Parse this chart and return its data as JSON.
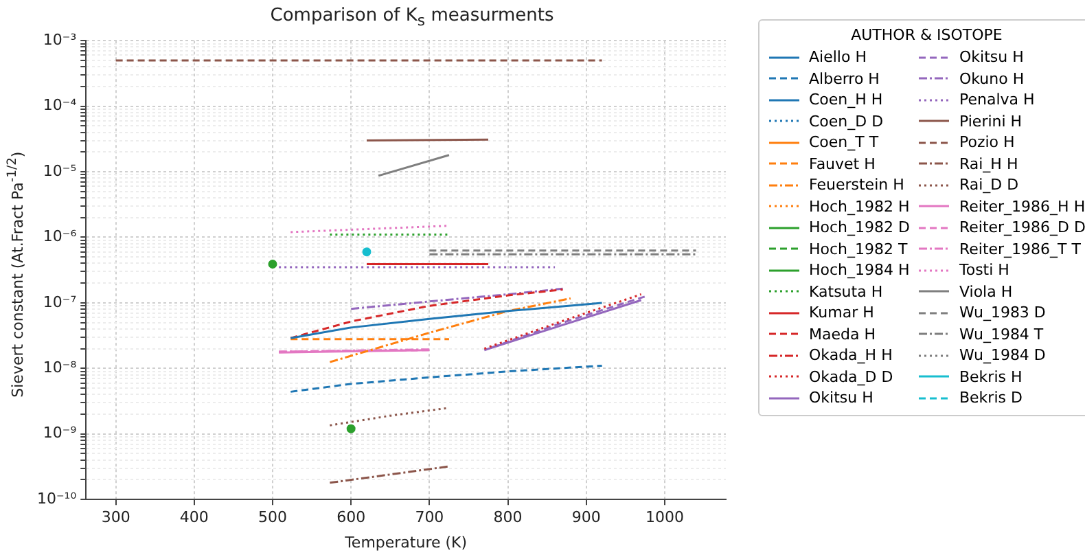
{
  "chart_data": {
    "type": "line",
    "title": "Comparison of K$_{s}$ measurments",
    "xlabel": "Temperature (K)",
    "ylabel": "Sievert constant (At.Fract Pa$^{-1/2}$)",
    "legend_title": "AUTHOR & ISOTOPE",
    "legend": "right",
    "grid": true,
    "log": "y",
    "xlim": [
      262,
      1078
    ],
    "xticks": [
      300,
      400,
      500,
      600,
      700,
      800,
      900,
      1000
    ],
    "ylim": [
      1e-10,
      0.001
    ],
    "yticks": [
      {
        "value": 1e-10,
        "label": "10⁻¹⁰"
      },
      {
        "value": 1e-09,
        "label": "10⁻⁹"
      },
      {
        "value": 1e-08,
        "label": "10⁻⁸"
      },
      {
        "value": 1e-07,
        "label": "10⁻⁷"
      },
      {
        "value": 1e-06,
        "label": "10⁻⁶"
      },
      {
        "value": 1e-05,
        "label": "10⁻⁵"
      },
      {
        "value": 0.0001,
        "label": "10⁻⁴"
      },
      {
        "value": 0.001,
        "label": "10⁻³"
      }
    ],
    "series": [
      {
        "name": "Aiello H",
        "color": "#1f77b4",
        "line_style": "solid",
        "x": [
          523,
          600,
          700,
          800,
          920
        ],
        "values": [
          2.9e-08,
          4.2e-08,
          5.7e-08,
          7.5e-08,
          1e-07
        ]
      },
      {
        "name": "Alberro H",
        "color": "#1f77b4",
        "line_style": "dashed",
        "x": [
          523,
          600,
          700,
          800,
          920
        ],
        "values": [
          4.4e-09,
          5.8e-09,
          7.3e-09,
          9e-09,
          1.1e-08
        ]
      },
      {
        "name": "Coen_H H",
        "color": "#1f77b4",
        "line_style": "solid"
      },
      {
        "name": "Coen_D D",
        "color": "#1f77b4",
        "line_style": "dotted"
      },
      {
        "name": "Coen_T T",
        "color": "#ff7f0e",
        "line_style": "solid"
      },
      {
        "name": "Fauvet H",
        "color": "#ff7f0e",
        "line_style": "dashed",
        "x": [
          523,
          725
        ],
        "values": [
          2.8e-08,
          2.8e-08
        ]
      },
      {
        "name": "Feuerstein H",
        "color": "#ff7f0e",
        "line_style": "dashdot",
        "x": [
          573,
          700,
          800,
          880
        ],
        "values": [
          1.25e-08,
          3.5e-08,
          7.5e-08,
          1.17e-07
        ]
      },
      {
        "name": "Hoch_1982 H",
        "color": "#ff7f0e",
        "line_style": "dotted"
      },
      {
        "name": "Hoch_1982 D",
        "color": "#2ca02c",
        "line_style": "solid",
        "marker": "circle",
        "x": [
          600
        ],
        "values": [
          1.2e-09
        ]
      },
      {
        "name": "Hoch_1982 T",
        "color": "#2ca02c",
        "line_style": "dashed"
      },
      {
        "name": "Hoch_1984 H",
        "color": "#2ca02c",
        "line_style": "solid",
        "marker": "circle",
        "x": [
          500
        ],
        "values": [
          3.9e-07
        ]
      },
      {
        "name": "Katsuta H",
        "color": "#2ca02c",
        "line_style": "dotted",
        "x": [
          573,
          725
        ],
        "values": [
          1.1e-06,
          1.1e-06
        ]
      },
      {
        "name": "Kumar H",
        "color": "#d62728",
        "line_style": "solid",
        "x": [
          620,
          775
        ],
        "values": [
          3.9e-07,
          3.9e-07
        ]
      },
      {
        "name": "Maeda H",
        "color": "#d62728",
        "line_style": "dashed",
        "x": [
          523,
          600,
          700,
          800,
          870
        ],
        "values": [
          2.9e-08,
          5.2e-08,
          9e-08,
          1.3e-07,
          1.6e-07
        ]
      },
      {
        "name": "Okada_H H",
        "color": "#d62728",
        "line_style": "dashdot"
      },
      {
        "name": "Okada_D D",
        "color": "#d62728",
        "line_style": "dotted",
        "x": [
          770,
          870,
          970
        ],
        "values": [
          2e-08,
          5.3e-08,
          1.35e-07
        ]
      },
      {
        "name": "Okitsu H",
        "color": "#9467bd",
        "line_style": "solid",
        "x": [
          770,
          870,
          970
        ],
        "values": [
          1.9e-08,
          4.6e-08,
          1.1e-07
        ]
      },
      {
        "name": "Okitsu H",
        "color": "#9467bd",
        "line_style": "dashed",
        "x": [
          780,
          870,
          975
        ],
        "values": [
          2.1e-08,
          5e-08,
          1.25e-07
        ]
      },
      {
        "name": "Okuno H",
        "color": "#9467bd",
        "line_style": "dashdot",
        "x": [
          600,
          700,
          800,
          870
        ],
        "values": [
          8.1e-08,
          1.05e-07,
          1.35e-07,
          1.65e-07
        ]
      },
      {
        "name": "Penalva H",
        "color": "#9467bd",
        "line_style": "dotted",
        "x": [
          508,
          860
        ],
        "values": [
          3.5e-07,
          3.5e-07
        ]
      },
      {
        "name": "Pierini H",
        "color": "#8c564b",
        "line_style": "solid",
        "x": [
          620,
          775
        ],
        "values": [
          3e-05,
          3.1e-05
        ]
      },
      {
        "name": "Pozio H",
        "color": "#8c564b",
        "line_style": "dashed",
        "x": [
          300,
          920
        ],
        "values": [
          0.0005,
          0.0005
        ]
      },
      {
        "name": "Rai_H H",
        "color": "#8c564b",
        "line_style": "dashdot",
        "x": [
          573,
          725
        ],
        "values": [
          1.8e-10,
          3.2e-10
        ]
      },
      {
        "name": "Rai_D D",
        "color": "#8c564b",
        "line_style": "dotted",
        "x": [
          573,
          650,
          725
        ],
        "values": [
          1.35e-09,
          1.9e-09,
          2.5e-09
        ]
      },
      {
        "name": "Reiter_1986_H H",
        "color": "#e377c2",
        "line_style": "solid",
        "x": [
          508,
          700
        ],
        "values": [
          1.75e-08,
          1.9e-08
        ]
      },
      {
        "name": "Reiter_1986_D D",
        "color": "#e377c2",
        "line_style": "dashed",
        "x": [
          508,
          700
        ],
        "values": [
          1.8e-08,
          1.9e-08
        ]
      },
      {
        "name": "Reiter_1986_T T",
        "color": "#e377c2",
        "line_style": "dashdot",
        "x": [
          508,
          700
        ],
        "values": [
          1.8e-08,
          1.95e-08
        ]
      },
      {
        "name": "Tosti H",
        "color": "#e377c2",
        "line_style": "dotted",
        "x": [
          523,
          725
        ],
        "values": [
          1.2e-06,
          1.5e-06
        ]
      },
      {
        "name": "Viola H",
        "color": "#7f7f7f",
        "line_style": "solid",
        "x": [
          635,
          725
        ],
        "values": [
          8.7e-06,
          1.8e-05
        ]
      },
      {
        "name": "Wu_1983 D",
        "color": "#7f7f7f",
        "line_style": "dashed",
        "x": [
          700,
          1040
        ],
        "values": [
          6.3e-07,
          6.3e-07
        ]
      },
      {
        "name": "Wu_1984 T",
        "color": "#7f7f7f",
        "line_style": "dashdot",
        "x": [
          700,
          1040
        ],
        "values": [
          5.5e-07,
          5.5e-07
        ]
      },
      {
        "name": "Wu_1984 D",
        "color": "#7f7f7f",
        "line_style": "dotted"
      },
      {
        "name": "Bekris H",
        "color": "#17becf",
        "line_style": "solid",
        "marker": "circle",
        "x": [
          620
        ],
        "values": [
          6e-07
        ]
      },
      {
        "name": "Bekris D",
        "color": "#17becf",
        "line_style": "dashed"
      }
    ]
  }
}
